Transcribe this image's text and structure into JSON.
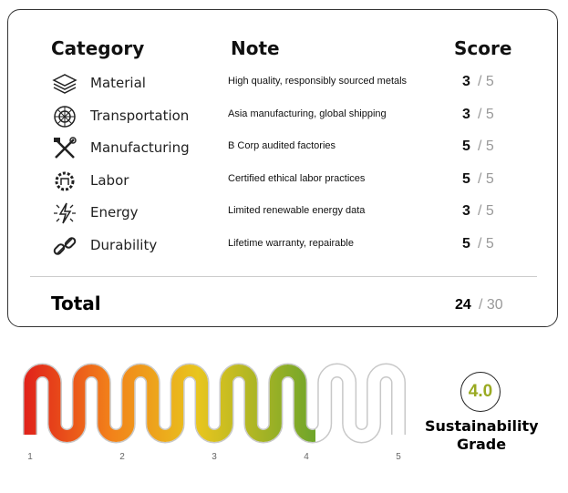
{
  "table": {
    "headers": [
      "Category",
      "Note",
      "Score"
    ],
    "rows": [
      {
        "category": "Material",
        "note": "High quality, responsibly sourced metals",
        "score": 3,
        "max": "/ 5"
      },
      {
        "category": "Transportation",
        "note": "Asia manufacturing, global shipping",
        "score": 3,
        "max": "/ 5"
      },
      {
        "category": "Manufacturing",
        "note": "B Corp audited factories",
        "score": 5,
        "max": "/ 5"
      },
      {
        "category": "Labor",
        "note": "Certified ethical labor practices",
        "score": 5,
        "max": "/ 5"
      },
      {
        "category": "Energy",
        "note": "Limited renewable energy data",
        "score": 3,
        "max": "/ 5"
      },
      {
        "category": "Durability",
        "note": "Lifetime warranty, repairable",
        "score": 5,
        "max": "/ 5"
      }
    ],
    "total": {
      "label": "Total",
      "score": 24,
      "max": "/ 30"
    }
  },
  "grade": {
    "value": "4.0",
    "label": "Sustainability Grade",
    "ticks": [
      1,
      2,
      3,
      4,
      5
    ]
  }
}
